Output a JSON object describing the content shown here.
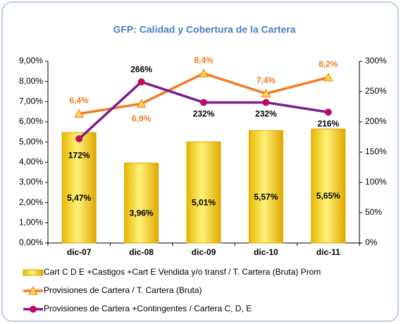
{
  "chart_data": {
    "type": "bar-line",
    "title": "GFP: Calidad y Cobertura de la Cartera",
    "categories": [
      "dic-07",
      "dic-08",
      "dic-09",
      "dic-10",
      "dic-11"
    ],
    "series": [
      {
        "name": "Cart C D E +Castigos +Cart E Vendida y/o transf / T. Cartera (Bruta) Prom",
        "type": "bar",
        "color": "#ffd700",
        "values": [
          5.47,
          3.96,
          5.01,
          5.57,
          5.65
        ],
        "value_labels": [
          "5,47%",
          "3,96%",
          "5,01%",
          "5,57%",
          "5,65%"
        ]
      },
      {
        "name": "Provisiones de Cartera / T. Cartera (Bruta)",
        "type": "line",
        "color": "#f47b20",
        "marker": "triangle",
        "values": [
          6.4,
          6.9,
          8.4,
          7.4,
          8.2
        ],
        "value_labels": [
          "6,4%",
          "6,9%",
          "8,4%",
          "7,4%",
          "8,2%"
        ]
      },
      {
        "name": "Provisiones de Cartera +Contingentes / Cartera C, D, E",
        "type": "line",
        "axis": "y2",
        "color": "#7b1f8c",
        "marker": "circle",
        "values": [
          172,
          266,
          232,
          232,
          216
        ],
        "value_labels": [
          "172%",
          "266%",
          "232%",
          "232%",
          "216%"
        ]
      }
    ],
    "ylim": [
      0,
      9
    ],
    "yticks": [
      {
        "value": 0,
        "label": "0,00%"
      },
      {
        "value": 1,
        "label": "1,00%"
      },
      {
        "value": 2,
        "label": "2,00%"
      },
      {
        "value": 3,
        "label": "3,00%"
      },
      {
        "value": 4,
        "label": "4,00%"
      },
      {
        "value": 5,
        "label": "5,00%"
      },
      {
        "value": 6,
        "label": "6,00%"
      },
      {
        "value": 7,
        "label": "7,00%"
      },
      {
        "value": 8,
        "label": "8,00%"
      },
      {
        "value": 9,
        "label": "9,00%"
      }
    ],
    "y2lim": [
      0,
      300
    ],
    "y2ticks": [
      {
        "value": 0,
        "label": "0%"
      },
      {
        "value": 50,
        "label": "50%"
      },
      {
        "value": 100,
        "label": "100%"
      },
      {
        "value": 150,
        "label": "150%"
      },
      {
        "value": 200,
        "label": "200%"
      },
      {
        "value": 250,
        "label": "250%"
      },
      {
        "value": 300,
        "label": "300%"
      }
    ],
    "legend": "bottom"
  }
}
